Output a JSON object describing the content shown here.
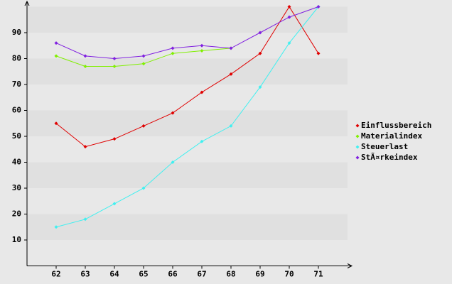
{
  "chart_data": {
    "type": "line",
    "x": [
      62,
      63,
      64,
      65,
      66,
      67,
      68,
      69,
      70,
      71
    ],
    "xlim": [
      61,
      72
    ],
    "xticks": [
      62,
      63,
      64,
      65,
      66,
      67,
      68,
      69,
      70,
      71
    ],
    "ylim": [
      0,
      100
    ],
    "yticks": [
      10,
      20,
      30,
      40,
      50,
      60,
      70,
      80,
      90
    ],
    "grid": true,
    "legend": "right",
    "series": [
      {
        "name": "Einflussbereich",
        "color": "#e00000",
        "values": [
          55,
          46,
          49,
          54,
          59,
          67,
          74,
          82,
          100,
          82
        ]
      },
      {
        "name": "Materialindex",
        "color": "#80f000",
        "values": [
          81,
          77,
          77,
          78,
          82,
          83,
          84,
          null,
          null,
          null
        ]
      },
      {
        "name": "Steuerlast",
        "color": "#40f0f0",
        "values": [
          15,
          18,
          24,
          30,
          40,
          48,
          54,
          69,
          86,
          100
        ]
      },
      {
        "name": "StÃ¤rkeindex",
        "color": "#8020e0",
        "values": [
          86,
          81,
          80,
          81,
          84,
          85,
          84,
          90,
          96,
          100
        ]
      }
    ]
  }
}
